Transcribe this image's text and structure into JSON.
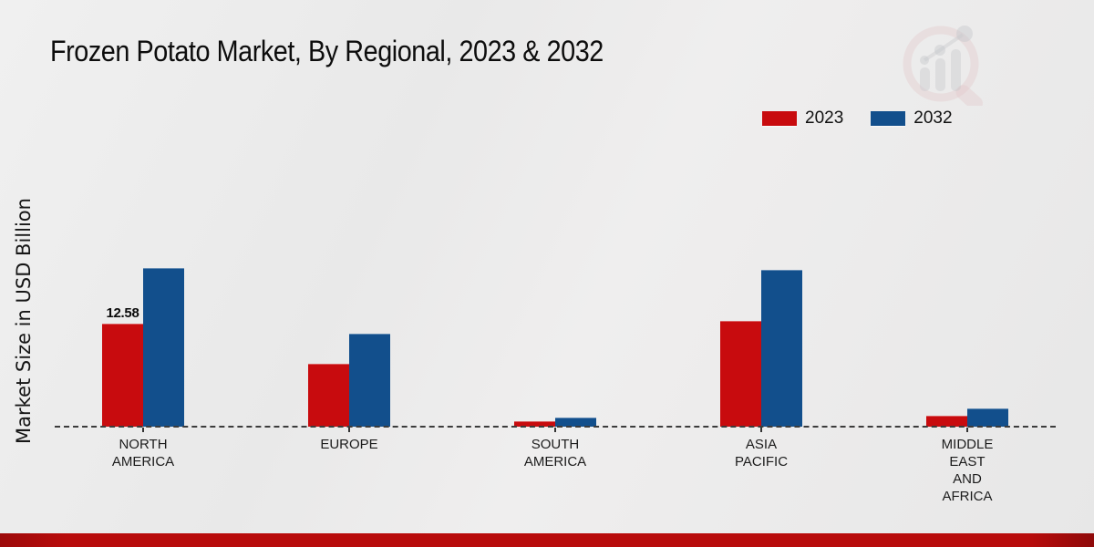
{
  "header": {
    "title": "Frozen Potato Market, By Regional, 2023 & 2032"
  },
  "watermark": {
    "icon": "magnifier-growth-chart-logo"
  },
  "chart_data": {
    "type": "bar",
    "title": "Frozen Potato Market, By Regional, 2023 & 2032",
    "xlabel": "",
    "ylabel": "Market Size in USD Billion",
    "categories": [
      "NORTH AMERICA",
      "EUROPE",
      "SOUTH AMERICA",
      "ASIA PACIFIC",
      "MIDDLE EAST AND AFRICA"
    ],
    "category_labels": [
      "NORTH\nAMERICA",
      "EUROPE",
      "SOUTH\nAMERICA",
      "ASIA\nPACIFIC",
      "MIDDLE\nEAST\nAND\nAFRICA"
    ],
    "series": [
      {
        "name": "2023",
        "color": "#c80b0e",
        "values": [
          12.58,
          7.7,
          0.65,
          12.85,
          1.3
        ],
        "labels": [
          "12.58",
          "",
          "",
          "",
          ""
        ]
      },
      {
        "name": "2032",
        "color": "#124f8c",
        "values": [
          19.3,
          11.35,
          1.1,
          19.1,
          2.2
        ],
        "labels": [
          "",
          "",
          "",
          "",
          ""
        ]
      }
    ],
    "ylim": [
      0,
      22
    ],
    "grid": false,
    "legend_position": "top-right",
    "baseline_style": "dashed"
  },
  "footer": {
    "bar_color": "#b80b0b"
  }
}
